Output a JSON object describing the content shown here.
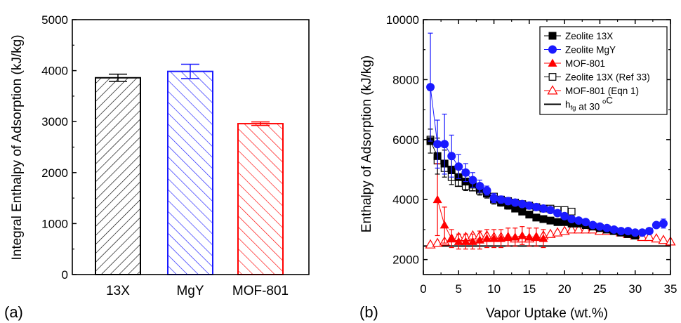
{
  "chart_data": [
    {
      "type": "bar",
      "panel_label": "(a)",
      "ylabel": "Integral Enthalpy of Adsorption (kJ/kg)",
      "ylim": [
        0,
        5000
      ],
      "yticks": [
        0,
        1000,
        2000,
        3000,
        4000,
        5000
      ],
      "categories": [
        "13X",
        "MgY",
        "MOF-801"
      ],
      "values": [
        3860,
        3985,
        2960
      ],
      "errors": [
        70,
        140,
        35
      ],
      "colors": [
        "#000000",
        "#1a1aff",
        "#ff0000"
      ],
      "fill": "diagonal-hatch"
    },
    {
      "type": "scatter",
      "panel_label": "(b)",
      "xlabel": "Vapor Uptake (wt.%)",
      "ylabel": "Enthalpy of Adsorption (kJ/kg)",
      "xlim": [
        0,
        35
      ],
      "ylim": [
        1500,
        10000
      ],
      "xticks": [
        0,
        5,
        10,
        15,
        20,
        25,
        30,
        35
      ],
      "yticks": [
        2000,
        4000,
        6000,
        8000,
        10000
      ],
      "legend_position": "top-right",
      "series": [
        {
          "name": "Zeolite 13X",
          "marker": "square-filled",
          "color": "#000000",
          "x": [
            1,
            2,
            3,
            4,
            5,
            6,
            7,
            8,
            9,
            10,
            11,
            12,
            13,
            14,
            15,
            16,
            17,
            18,
            19,
            20,
            21,
            22,
            23,
            24,
            25,
            26,
            27,
            28,
            29,
            30
          ],
          "y": [
            5950,
            5450,
            5200,
            5000,
            4750,
            4600,
            4500,
            4350,
            4200,
            4000,
            3900,
            3800,
            3700,
            3600,
            3500,
            3400,
            3350,
            3300,
            3250,
            3250,
            3200,
            3200,
            3150,
            3100,
            3050,
            3000,
            2950,
            2900,
            2850,
            2800
          ],
          "err": [
            400,
            600,
            450,
            500,
            300,
            300,
            200,
            200,
            150,
            150,
            120,
            120,
            100,
            100,
            100,
            100,
            100,
            100,
            100,
            100,
            100,
            100,
            100,
            100,
            100,
            100,
            100,
            100,
            100,
            100
          ]
        },
        {
          "name": "Zeolite  MgY",
          "marker": "circle-filled",
          "color": "#1a1aff",
          "x": [
            1,
            2,
            3,
            4,
            5,
            6,
            7,
            8,
            9,
            10,
            11,
            12,
            13,
            14,
            15,
            16,
            17,
            18,
            19,
            20,
            21,
            22,
            23,
            24,
            25,
            26,
            27,
            28,
            29,
            30,
            31,
            32,
            33,
            34
          ],
          "y": [
            7750,
            5850,
            5850,
            5450,
            5100,
            4900,
            4650,
            4450,
            4300,
            4050,
            4000,
            3950,
            3900,
            3850,
            3800,
            3750,
            3700,
            3650,
            3550,
            3450,
            3350,
            3300,
            3250,
            3150,
            3100,
            3050,
            3000,
            2950,
            2950,
            2900,
            2900,
            2950,
            3150,
            3200
          ],
          "err": [
            1800,
            800,
            1000,
            700,
            400,
            300,
            250,
            200,
            150,
            150,
            120,
            120,
            100,
            100,
            100,
            100,
            100,
            100,
            100,
            100,
            100,
            100,
            100,
            100,
            100,
            100,
            100,
            100,
            100,
            100,
            100,
            100,
            100,
            150
          ]
        },
        {
          "name": "MOF-801",
          "marker": "triangle-filled",
          "color": "#ff0000",
          "x": [
            2,
            3,
            4,
            5,
            6,
            7,
            8,
            9,
            10,
            11,
            12,
            13,
            14,
            15,
            16,
            17
          ],
          "y": [
            4000,
            3150,
            2700,
            2600,
            2600,
            2600,
            2650,
            2700,
            2700,
            2700,
            2750,
            2750,
            2800,
            2750,
            2750,
            2700
          ],
          "err": [
            1200,
            600,
            300,
            250,
            250,
            250,
            300,
            300,
            300,
            300,
            300,
            300,
            300,
            300,
            300,
            300
          ]
        },
        {
          "name": "Zeolite 13X (Ref 33)",
          "marker": "square-open",
          "color": "#000000",
          "x": [
            1,
            2,
            3,
            4,
            5,
            6,
            7,
            8,
            9,
            10,
            11,
            12,
            13,
            14,
            15,
            16,
            17,
            18,
            19,
            20,
            21
          ],
          "y": [
            6000,
            5300,
            5050,
            4750,
            4550,
            4450,
            4400,
            4300,
            4200,
            4100,
            4000,
            3950,
            3900,
            3850,
            3800,
            3750,
            3700,
            3700,
            3650,
            3650,
            3600
          ]
        },
        {
          "name": "MOF-801 (Eqn 1)",
          "marker": "triangle-open",
          "color": "#ff0000",
          "x": [
            1,
            2,
            3,
            4,
            5,
            6,
            7,
            8,
            9,
            10,
            11,
            12,
            13,
            14,
            15,
            16,
            17,
            18,
            19,
            20,
            21,
            22,
            23,
            24,
            25,
            26,
            27,
            28,
            29,
            30,
            31,
            32,
            33,
            34,
            35
          ],
          "y": [
            2500,
            2550,
            2600,
            2700,
            2750,
            2750,
            2800,
            2800,
            2800,
            2750,
            2750,
            2750,
            2700,
            2700,
            2700,
            2750,
            2800,
            2850,
            2900,
            2950,
            3000,
            3000,
            3000,
            3000,
            2950,
            2950,
            2950,
            2900,
            2850,
            2800,
            2750,
            2750,
            2700,
            2650,
            2600
          ]
        }
      ],
      "reference_line": {
        "name_main": "h",
        "name_sub": "fg",
        "name_rest": " at 30 ",
        "name_deg": "o",
        "name_unit": "C",
        "y": 2450,
        "color": "#000000"
      }
    }
  ]
}
